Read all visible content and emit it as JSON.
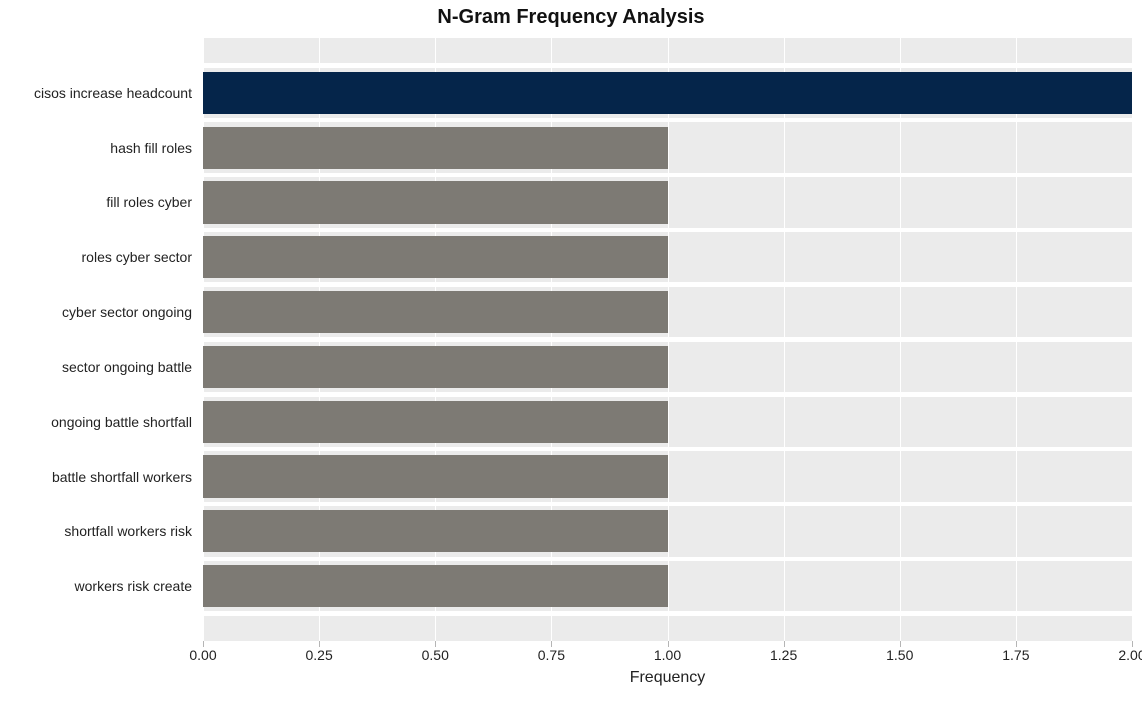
{
  "chart": {
    "type": "bar-horizontal",
    "title": "N-Gram Frequency Analysis",
    "title_fontsize": 20,
    "title_fontweight": "bold",
    "xlabel": "Frequency",
    "xlabel_fontsize": 16,
    "background_color": "#ffffff",
    "panel_stripe_color": "#ebebeb",
    "panel_alt_color": "#ffffff",
    "grid_color": "#ffffff",
    "tick_color": "#b5b5b5",
    "text_color": "#222222",
    "xlim": [
      0.0,
      2.0
    ],
    "xtick_step": 0.25,
    "bar_width_ratio": 0.77,
    "bars": [
      {
        "label": "cisos increase headcount",
        "value": 2.0,
        "color": "#05254a"
      },
      {
        "label": "hash fill roles",
        "value": 1.0,
        "color": "#7d7a74"
      },
      {
        "label": "fill roles cyber",
        "value": 1.0,
        "color": "#7d7a74"
      },
      {
        "label": "roles cyber sector",
        "value": 1.0,
        "color": "#7d7a74"
      },
      {
        "label": "cyber sector ongoing",
        "value": 1.0,
        "color": "#7d7a74"
      },
      {
        "label": "sector ongoing battle",
        "value": 1.0,
        "color": "#7d7a74"
      },
      {
        "label": "ongoing battle shortfall",
        "value": 1.0,
        "color": "#7d7a74"
      },
      {
        "label": "battle shortfall workers",
        "value": 1.0,
        "color": "#7d7a74"
      },
      {
        "label": "shortfall workers risk",
        "value": 1.0,
        "color": "#7d7a74"
      },
      {
        "label": "workers risk create",
        "value": 1.0,
        "color": "#7d7a74"
      }
    ],
    "xticks": [
      {
        "v": 0.0,
        "label": "0.00"
      },
      {
        "v": 0.25,
        "label": "0.25"
      },
      {
        "v": 0.5,
        "label": "0.50"
      },
      {
        "v": 0.75,
        "label": "0.75"
      },
      {
        "v": 1.0,
        "label": "1.00"
      },
      {
        "v": 1.25,
        "label": "1.25"
      },
      {
        "v": 1.5,
        "label": "1.50"
      },
      {
        "v": 1.75,
        "label": "1.75"
      },
      {
        "v": 2.0,
        "label": "2.00"
      }
    ],
    "ylabel_fontsize": 14,
    "xtick_fontsize": 14,
    "row_half_pad_ratio": 0.5
  }
}
